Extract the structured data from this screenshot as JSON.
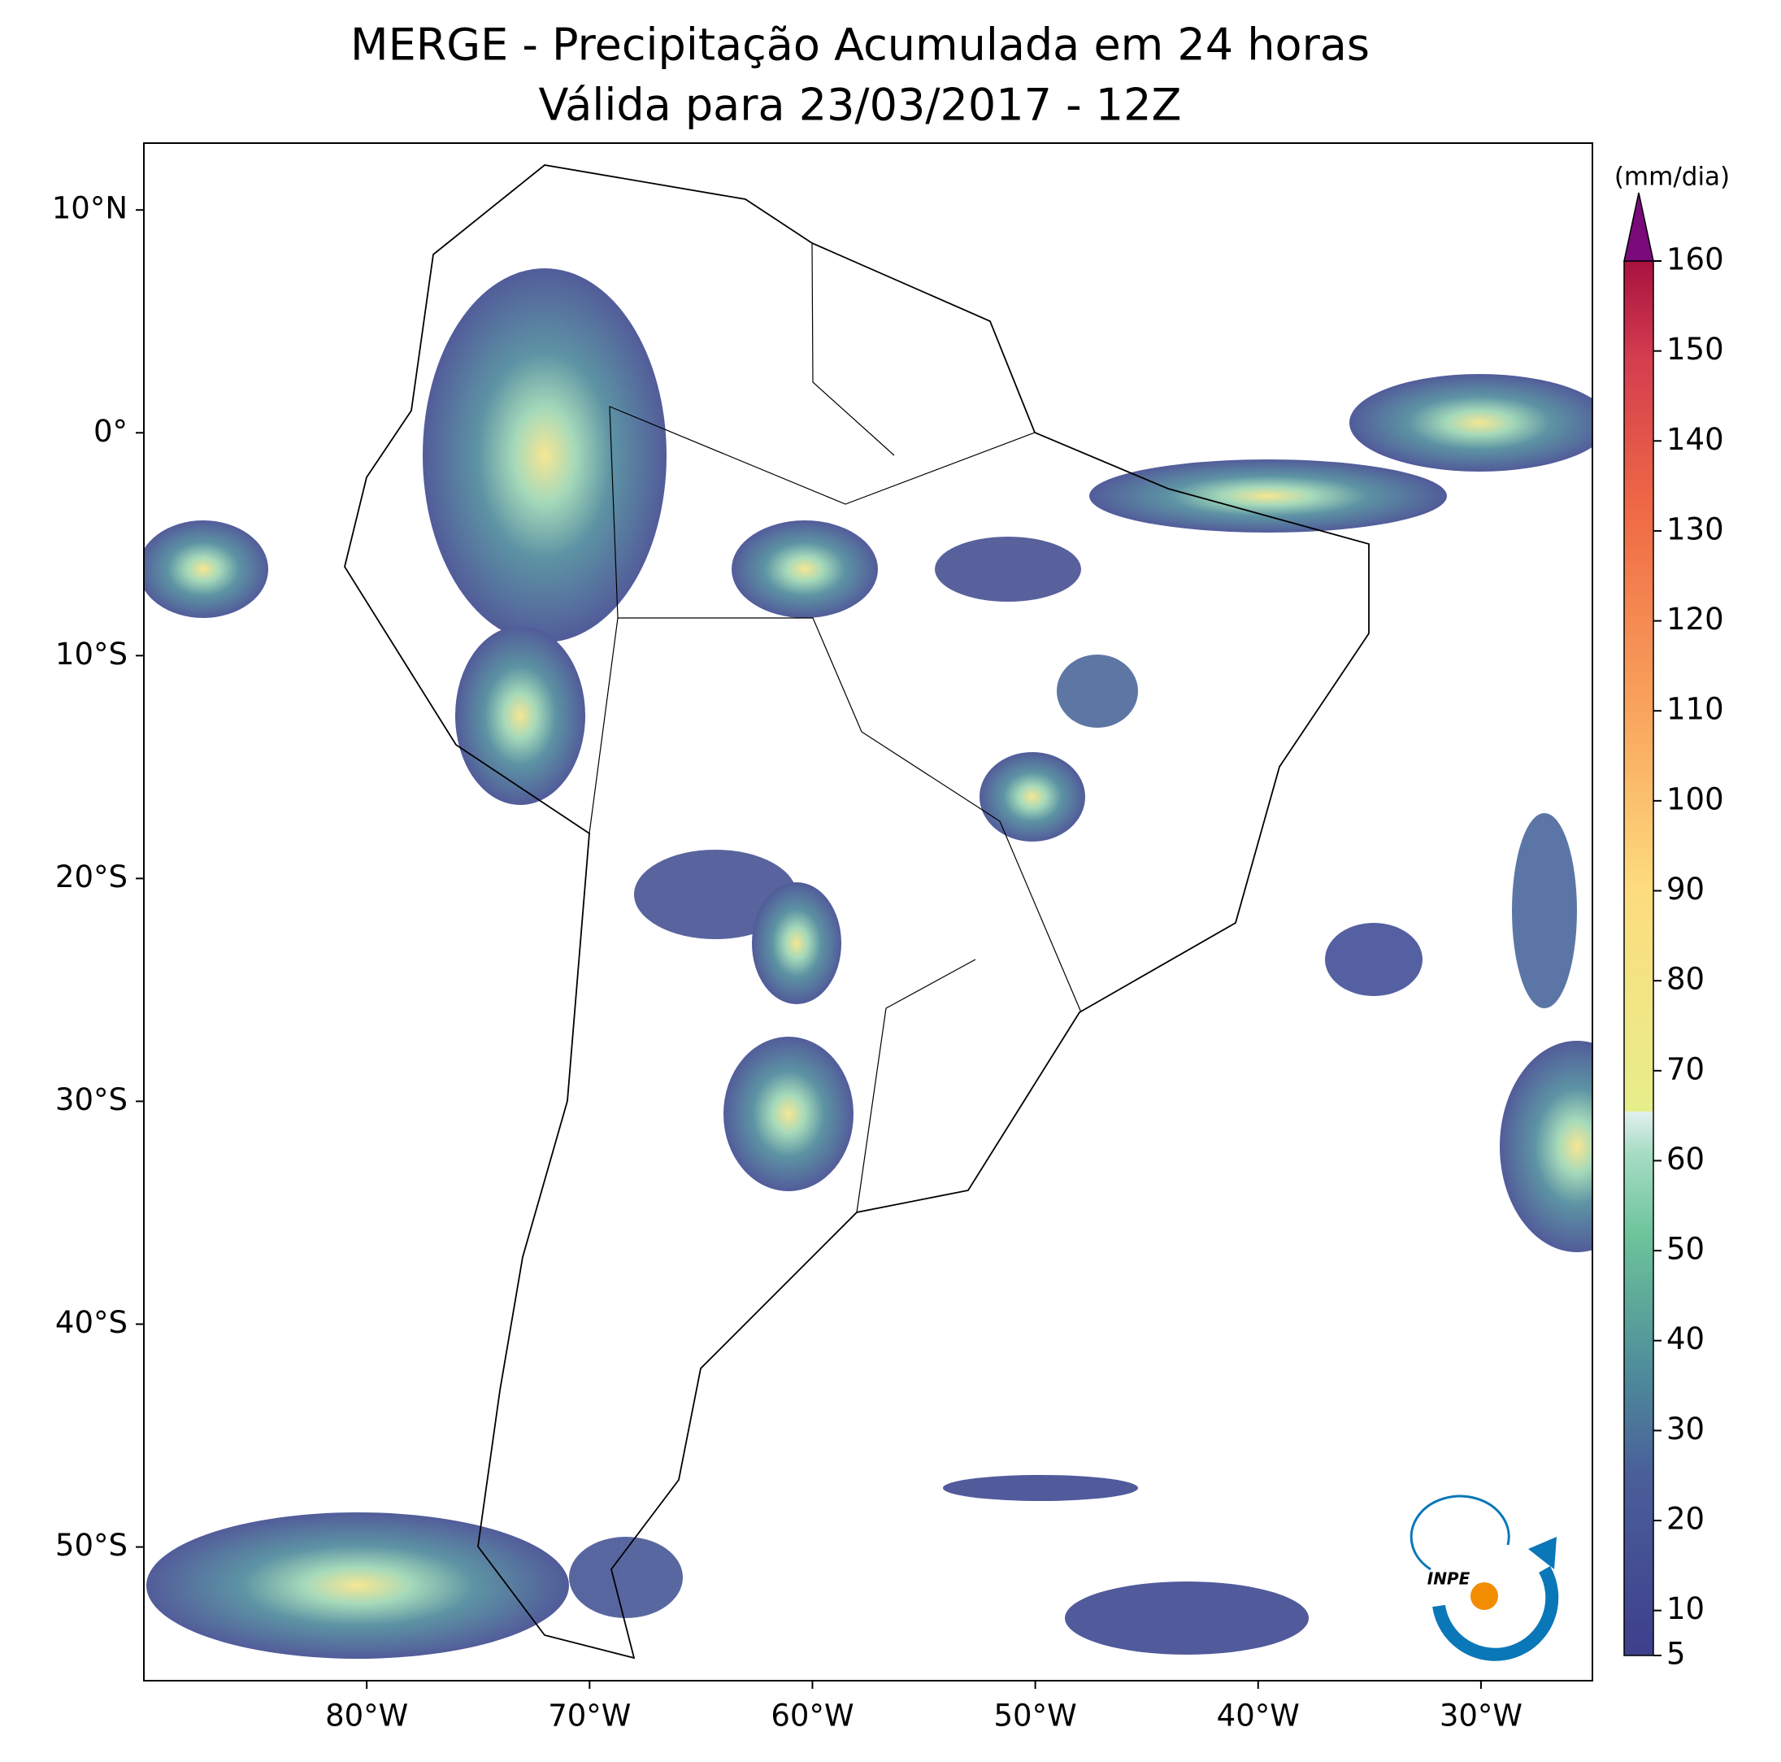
{
  "chart_data": {
    "type": "map",
    "title": "MERGE - Precipitação Acumulada em 24 horas",
    "subtitle": "Válida para 23/03/2017 - 12Z",
    "xlim": [
      -90,
      -25
    ],
    "ylim": [
      -56,
      13
    ],
    "xticks": [
      {
        "value": -80,
        "label": "80°W"
      },
      {
        "value": -70,
        "label": "70°W"
      },
      {
        "value": -60,
        "label": "60°W"
      },
      {
        "value": -50,
        "label": "50°W"
      },
      {
        "value": -40,
        "label": "40°W"
      },
      {
        "value": -30,
        "label": "30°W"
      }
    ],
    "yticks": [
      {
        "value": 10,
        "label": "10°N"
      },
      {
        "value": 0,
        "label": "0°"
      },
      {
        "value": -10,
        "label": "10°S"
      },
      {
        "value": -20,
        "label": "20°S"
      },
      {
        "value": -30,
        "label": "30°S"
      },
      {
        "value": -40,
        "label": "40°S"
      },
      {
        "value": -50,
        "label": "50°S"
      }
    ],
    "colorbar": {
      "label": "(mm/dia)",
      "lim": [
        5,
        160
      ],
      "ticks": [
        5,
        10,
        20,
        30,
        40,
        50,
        60,
        70,
        80,
        90,
        100,
        110,
        120,
        130,
        140,
        150,
        160
      ]
    }
  },
  "logo_text": "INPE"
}
